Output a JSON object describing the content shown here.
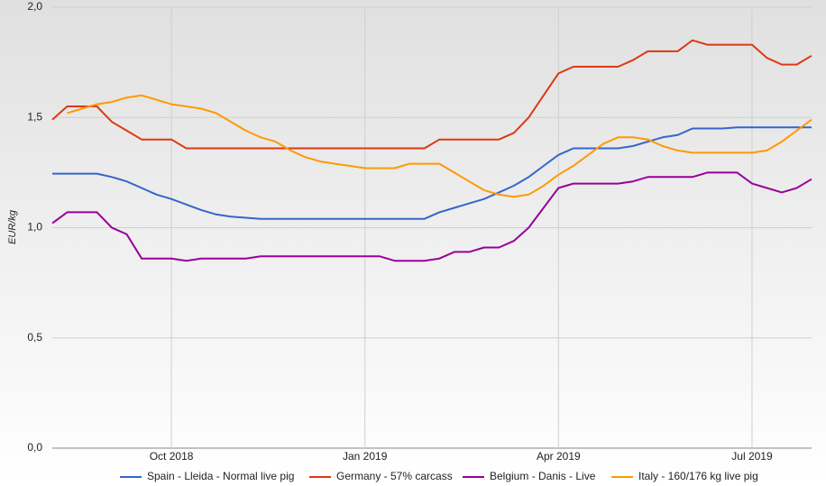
{
  "chart_data": {
    "type": "line",
    "y_label": "EUR/kg",
    "categories": [
      null,
      null,
      null,
      null,
      null,
      null,
      null,
      null,
      "Oct 2018",
      null,
      null,
      null,
      null,
      null,
      null,
      null,
      null,
      null,
      null,
      null,
      null,
      "Jan 2019",
      null,
      null,
      null,
      null,
      null,
      null,
      null,
      null,
      null,
      null,
      null,
      null,
      "Apr 2019",
      null,
      null,
      null,
      null,
      null,
      null,
      null,
      null,
      null,
      null,
      null,
      null,
      "Jul 2019",
      null,
      null,
      null,
      null
    ],
    "ylim": [
      0,
      2
    ],
    "yticks": [
      {
        "value": 0,
        "label": "0,0"
      },
      {
        "value": 0.5,
        "label": "0,5"
      },
      {
        "value": 1,
        "label": "1,0"
      },
      {
        "value": 1.5,
        "label": "1,5"
      },
      {
        "value": 2,
        "label": "2,0"
      }
    ],
    "grid": true,
    "legend": "bottom",
    "series": [
      {
        "name": "Spain - Lleida - Normal live pig",
        "color": "#3366cc",
        "values": [
          1.245,
          1.245,
          1.245,
          1.245,
          1.23,
          1.21,
          1.18,
          1.15,
          1.13,
          1.105,
          1.08,
          1.06,
          1.05,
          1.045,
          1.04,
          1.04,
          1.04,
          1.04,
          1.04,
          1.04,
          1.04,
          1.04,
          1.04,
          1.04,
          1.04,
          1.04,
          1.07,
          1.09,
          1.11,
          1.13,
          1.16,
          1.19,
          1.23,
          1.28,
          1.33,
          1.36,
          1.36,
          1.36,
          1.36,
          1.37,
          1.39,
          1.41,
          1.42,
          1.45,
          1.45,
          1.45,
          1.455,
          1.455,
          1.455,
          1.455,
          1.455,
          1.455
        ]
      },
      {
        "name": "Germany - 57% carcass",
        "color": "#dc3912",
        "values": [
          1.49,
          1.55,
          1.55,
          1.55,
          1.48,
          1.44,
          1.4,
          1.4,
          1.4,
          1.36,
          1.36,
          1.36,
          1.36,
          1.36,
          1.36,
          1.36,
          1.36,
          1.36,
          1.36,
          1.36,
          1.36,
          1.36,
          1.36,
          1.36,
          1.36,
          1.36,
          1.4,
          1.4,
          1.4,
          1.4,
          1.4,
          1.43,
          1.5,
          1.6,
          1.7,
          1.73,
          1.73,
          1.73,
          1.73,
          1.76,
          1.8,
          1.8,
          1.8,
          1.85,
          1.83,
          1.83,
          1.83,
          1.83,
          1.77,
          1.74,
          1.74,
          1.78
        ]
      },
      {
        "name": "Belgium - Danis - Live",
        "color": "#990099",
        "values": [
          1.02,
          1.07,
          1.07,
          1.07,
          1.0,
          0.97,
          0.86,
          0.86,
          0.86,
          0.85,
          0.86,
          0.86,
          0.86,
          0.86,
          0.87,
          0.87,
          0.87,
          0.87,
          0.87,
          0.87,
          0.87,
          0.87,
          0.87,
          0.85,
          0.85,
          0.85,
          0.86,
          0.89,
          0.89,
          0.91,
          0.91,
          0.94,
          1.0,
          1.09,
          1.18,
          1.2,
          1.2,
          1.2,
          1.2,
          1.21,
          1.23,
          1.23,
          1.23,
          1.23,
          1.25,
          1.25,
          1.25,
          1.2,
          1.18,
          1.16,
          1.18,
          1.22
        ]
      },
      {
        "name": "Italy - 160/176 kg live pig",
        "color": "#ff9900",
        "values": [
          null,
          1.52,
          1.54,
          1.56,
          1.57,
          1.59,
          1.6,
          1.58,
          1.56,
          1.55,
          1.54,
          1.52,
          1.48,
          1.44,
          1.41,
          1.39,
          1.35,
          1.32,
          1.3,
          1.29,
          1.28,
          1.27,
          1.27,
          1.27,
          1.29,
          1.29,
          1.29,
          1.25,
          1.21,
          1.17,
          1.15,
          1.14,
          1.15,
          1.19,
          1.24,
          1.28,
          1.33,
          1.38,
          1.41,
          1.41,
          1.4,
          1.37,
          1.35,
          1.34,
          1.34,
          1.34,
          1.34,
          1.34,
          1.35,
          1.39,
          1.44,
          1.49
        ]
      }
    ]
  }
}
